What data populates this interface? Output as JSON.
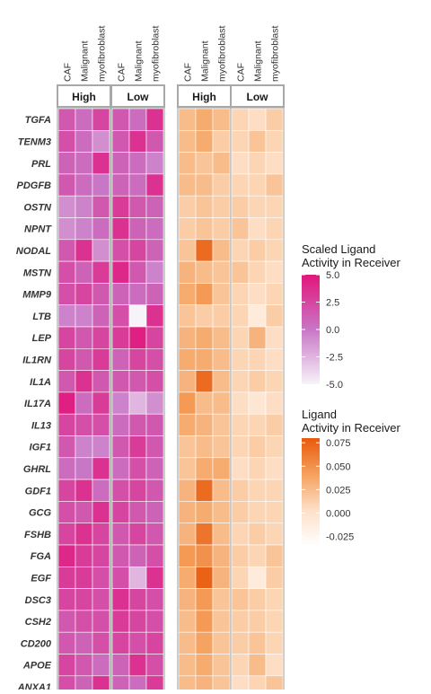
{
  "chart_data": {
    "type": "heatmap",
    "ligands": [
      "TGFA",
      "TENM3",
      "PRL",
      "PDGFB",
      "OSTN",
      "NPNT",
      "NODAL",
      "MSTN",
      "MMP9",
      "LTB",
      "LEP",
      "IL1RN",
      "IL1A",
      "IL17A",
      "IL13",
      "IGF1",
      "GHRL",
      "GDF1",
      "GCG",
      "FSHB",
      "FGA",
      "EGF",
      "DSC3",
      "CSH2",
      "CD200",
      "APOE",
      "ANXA1"
    ],
    "cell_types": [
      "CAF",
      "Malignant",
      "myofibroblast"
    ],
    "groups": [
      "High",
      "Low"
    ],
    "scaled": {
      "legend_title": "Scaled Ligand\nActivity in Receiver",
      "ticks": [
        5.0,
        2.5,
        0.0,
        -2.5,
        -5.0
      ],
      "tick_labels": [
        "5.0",
        "2.5",
        "0.0",
        "-2.5",
        "-5.0"
      ],
      "range": [
        -5,
        5
      ],
      "colors": [
        "#f7f3fa",
        "#c876c6",
        "#e3157a"
      ],
      "values": {
        "High": [
          [
            1.5,
            0.5,
            2.5
          ],
          [
            2.0,
            0.5,
            -1.0
          ],
          [
            1.0,
            0.5,
            3.5
          ],
          [
            1.5,
            0.5,
            0.0
          ],
          [
            -1.0,
            -0.5,
            1.5
          ],
          [
            -1.0,
            -0.5,
            0.5
          ],
          [
            1.5,
            3.5,
            -1.0
          ],
          [
            2.0,
            1.0,
            3.0
          ],
          [
            2.0,
            2.5,
            1.5
          ],
          [
            -0.5,
            -0.5,
            1.0
          ],
          [
            2.5,
            1.5,
            2.5
          ],
          [
            2.5,
            1.5,
            3.0
          ],
          [
            1.5,
            3.5,
            1.5
          ],
          [
            4.5,
            0.5,
            3.0
          ],
          [
            2.5,
            2.0,
            2.0
          ],
          [
            1.5,
            -0.5,
            -0.5
          ],
          [
            0.5,
            0.0,
            3.5
          ],
          [
            2.5,
            3.5,
            0.5
          ],
          [
            2.0,
            1.5,
            3.5
          ],
          [
            2.5,
            3.5,
            2.5
          ],
          [
            4.0,
            3.0,
            2.5
          ],
          [
            3.0,
            3.0,
            2.0
          ],
          [
            2.5,
            2.5,
            2.0
          ],
          [
            1.5,
            2.0,
            2.0
          ],
          [
            1.5,
            1.0,
            2.0
          ],
          [
            2.5,
            1.5,
            0.5
          ],
          [
            2.0,
            1.0,
            3.5
          ]
        ],
        "Low": [
          [
            1.5,
            0.5,
            3.5
          ],
          [
            1.5,
            3.5,
            1.5
          ],
          [
            1.0,
            0.5,
            -0.5
          ],
          [
            1.0,
            0.5,
            3.5
          ],
          [
            3.0,
            1.5,
            1.0
          ],
          [
            3.5,
            1.0,
            0.5
          ],
          [
            2.0,
            2.5,
            1.0
          ],
          [
            4.0,
            1.5,
            -0.5
          ],
          [
            1.0,
            0.5,
            1.0
          ],
          [
            2.0,
            -5.0,
            3.5
          ],
          [
            3.0,
            4.5,
            2.5
          ],
          [
            1.0,
            2.5,
            2.0
          ],
          [
            1.5,
            1.5,
            2.0
          ],
          [
            -0.5,
            -2.5,
            -1.0
          ],
          [
            0.5,
            1.5,
            1.5
          ],
          [
            1.5,
            3.0,
            1.5
          ],
          [
            0.5,
            2.0,
            1.0
          ],
          [
            2.0,
            2.5,
            1.5
          ],
          [
            2.5,
            1.5,
            1.0
          ],
          [
            1.5,
            2.5,
            1.5
          ],
          [
            1.5,
            1.0,
            2.0
          ],
          [
            2.0,
            -2.5,
            3.5
          ],
          [
            3.5,
            2.5,
            2.0
          ],
          [
            3.0,
            2.5,
            2.0
          ],
          [
            2.5,
            2.0,
            2.5
          ],
          [
            1.0,
            3.5,
            2.0
          ],
          [
            1.0,
            0.5,
            3.0
          ]
        ]
      }
    },
    "raw": {
      "legend_title": "Ligand\nActivity in Receiver",
      "ticks": [
        0.075,
        0.05,
        0.025,
        0.0,
        -0.025
      ],
      "tick_labels": [
        "0.075",
        "0.050",
        "0.025",
        "0.000",
        "-0.025"
      ],
      "range": [
        -0.035,
        0.08
      ],
      "colors": [
        "#ffffff",
        "#fde0c8",
        "#f5a05c",
        "#e8590c"
      ],
      "values": {
        "High": [
          [
            0.025,
            0.035,
            0.025
          ],
          [
            0.025,
            0.035,
            0.015
          ],
          [
            0.025,
            0.02,
            0.025
          ],
          [
            0.025,
            0.025,
            0.015
          ],
          [
            0.015,
            0.02,
            0.015
          ],
          [
            0.015,
            0.02,
            0.015
          ],
          [
            0.02,
            0.07,
            0.025
          ],
          [
            0.03,
            0.025,
            0.02
          ],
          [
            0.035,
            0.045,
            0.02
          ],
          [
            0.02,
            0.015,
            0.015
          ],
          [
            0.03,
            0.035,
            0.025
          ],
          [
            0.035,
            0.035,
            0.025
          ],
          [
            0.03,
            0.07,
            0.025
          ],
          [
            0.045,
            0.025,
            0.025
          ],
          [
            0.035,
            0.03,
            0.02
          ],
          [
            0.02,
            0.025,
            0.02
          ],
          [
            0.02,
            0.035,
            0.035
          ],
          [
            0.03,
            0.07,
            0.025
          ],
          [
            0.03,
            0.035,
            0.025
          ],
          [
            0.03,
            0.065,
            0.025
          ],
          [
            0.045,
            0.05,
            0.03
          ],
          [
            0.035,
            0.075,
            0.03
          ],
          [
            0.03,
            0.045,
            0.02
          ],
          [
            0.025,
            0.045,
            0.02
          ],
          [
            0.025,
            0.04,
            0.02
          ],
          [
            0.025,
            0.035,
            0.02
          ],
          [
            0.025,
            0.03,
            0.02
          ]
        ],
        "Low": [
          [
            0.01,
            0.005,
            0.015
          ],
          [
            0.01,
            0.02,
            0.01
          ],
          [
            0.005,
            0.01,
            0.005
          ],
          [
            0.01,
            0.01,
            0.02
          ],
          [
            0.015,
            0.01,
            0.01
          ],
          [
            0.02,
            0.005,
            0.01
          ],
          [
            0.01,
            0.015,
            0.01
          ],
          [
            0.02,
            0.01,
            0.005
          ],
          [
            0.01,
            0.005,
            0.01
          ],
          [
            0.01,
            -0.01,
            0.015
          ],
          [
            0.01,
            0.03,
            0.005
          ],
          [
            0.01,
            0.01,
            0.005
          ],
          [
            0.01,
            0.015,
            0.01
          ],
          [
            0.005,
            -0.005,
            0.005
          ],
          [
            0.01,
            0.01,
            0.015
          ],
          [
            0.01,
            0.015,
            0.01
          ],
          [
            0.005,
            0.01,
            0.005
          ],
          [
            0.015,
            0.01,
            0.01
          ],
          [
            0.015,
            0.01,
            0.01
          ],
          [
            0.01,
            0.015,
            0.01
          ],
          [
            0.015,
            0.01,
            0.02
          ],
          [
            0.01,
            -0.01,
            0.015
          ],
          [
            0.02,
            0.015,
            0.01
          ],
          [
            0.015,
            0.015,
            0.01
          ],
          [
            0.015,
            0.02,
            0.01
          ],
          [
            0.01,
            0.025,
            0.005
          ],
          [
            0.005,
            0.01,
            0.02
          ]
        ]
      }
    }
  }
}
